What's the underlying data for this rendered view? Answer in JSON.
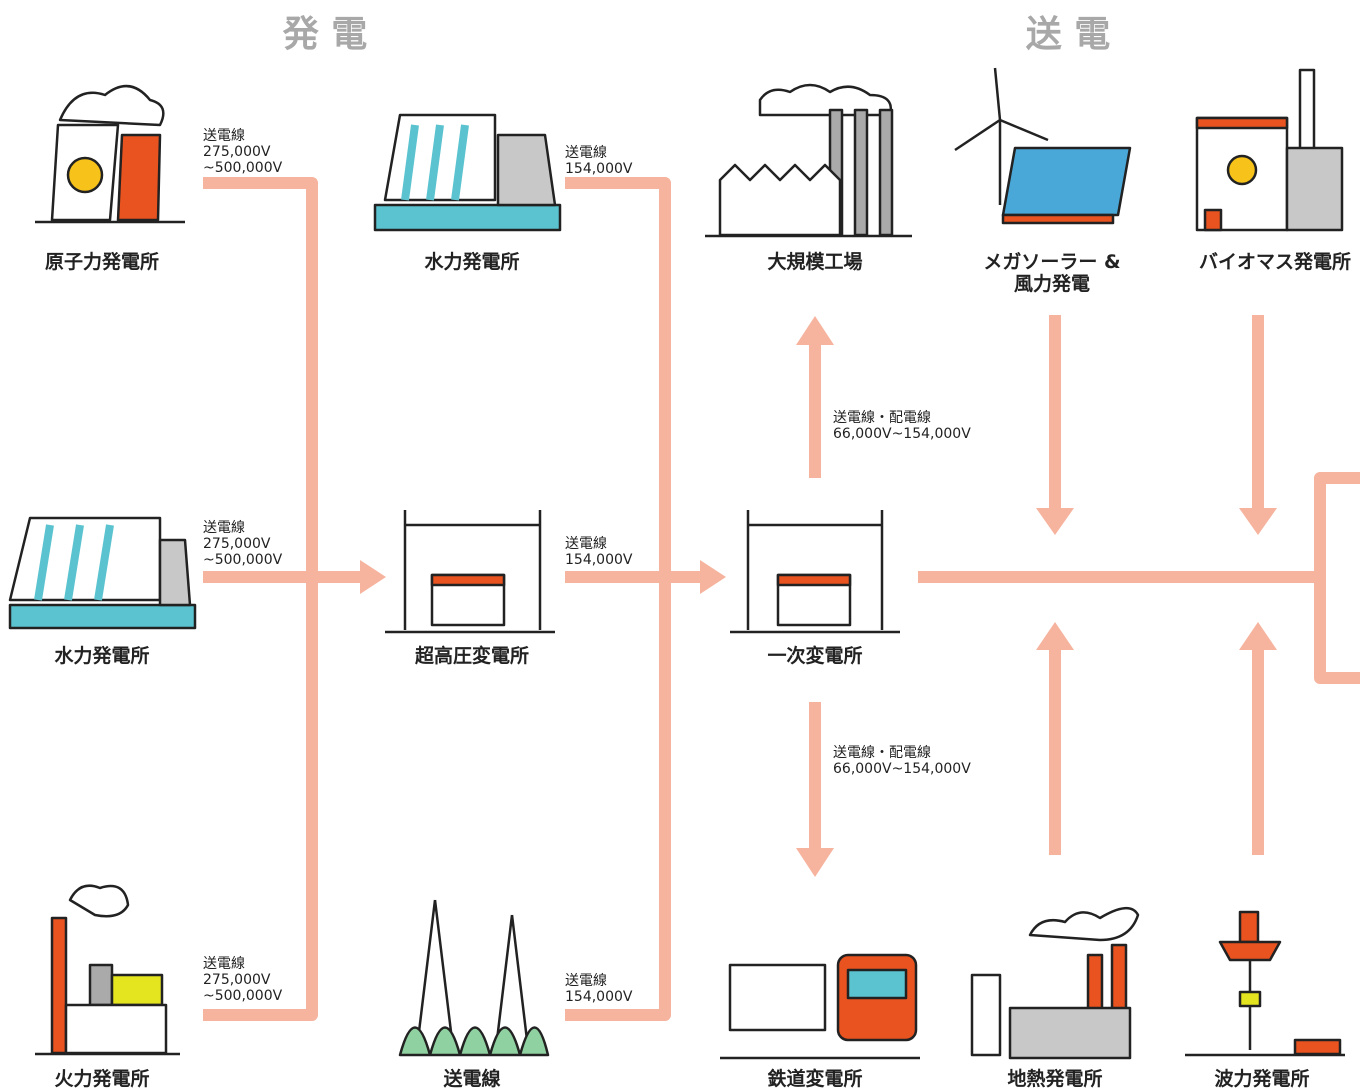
{
  "headers": [
    "発 電",
    "送 電"
  ],
  "nodes": [
    {
      "label": [
        "原子力発電所"
      ]
    },
    {
      "label": [
        "水力発電所"
      ]
    },
    {
      "label": [
        "大規模工場"
      ]
    },
    {
      "label": [
        "メガソーラー &",
        "風力発電"
      ]
    },
    {
      "label": [
        "バイオマス発電所"
      ]
    },
    {
      "label": [
        "水力発電所"
      ]
    },
    {
      "label": [
        "超高圧変電所"
      ]
    },
    {
      "label": [
        "一次変電所"
      ]
    },
    {
      "label": [
        "火力発電所"
      ]
    },
    {
      "label": [
        "送電線"
      ]
    },
    {
      "label": [
        "鉄道変電所"
      ]
    },
    {
      "label": [
        "地熱発電所"
      ]
    },
    {
      "label": [
        "波力発電所"
      ]
    }
  ],
  "line_labels": [
    {
      "lines": [
        "送電線",
        "275,000V",
        "~500,000V"
      ]
    },
    {
      "lines": [
        "送電線",
        "154,000V"
      ]
    },
    {
      "lines": [
        "送電線",
        "275,000V",
        "~500,000V"
      ]
    },
    {
      "lines": [
        "送電線",
        "154,000V"
      ]
    },
    {
      "lines": [
        "送電線",
        "275,000V",
        "~500,000V"
      ]
    },
    {
      "lines": [
        "送電線",
        "154,000V"
      ]
    },
    {
      "lines": [
        "送電線・配電線",
        "66,000V~154,000V"
      ]
    },
    {
      "lines": [
        "送電線・配電線",
        "66,000V~154,000V"
      ]
    }
  ]
}
